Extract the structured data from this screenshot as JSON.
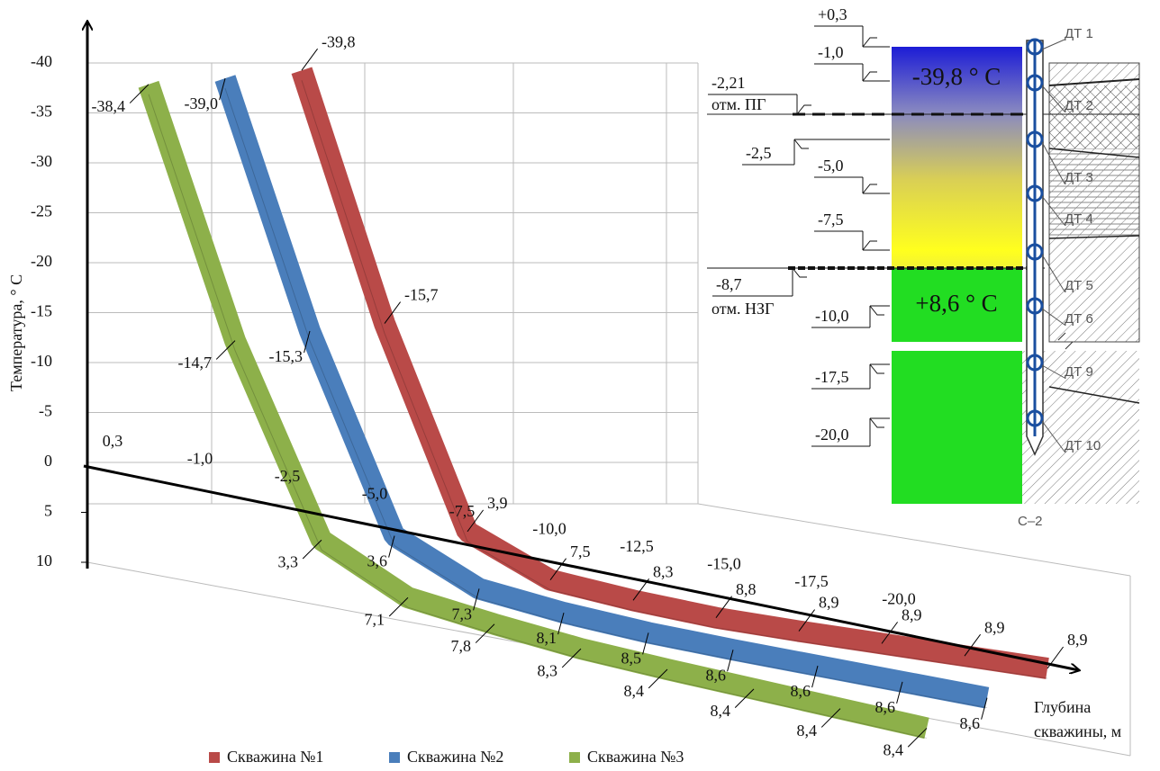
{
  "chart_data": {
    "type": "line",
    "y_label": "Температура, ° С",
    "x_label": [
      "Глубина",
      "скважины, м"
    ],
    "categories": [
      "0,3",
      "-1,0",
      "-2,5",
      "-5,0",
      "-7,5",
      "-10,0",
      "-12,5",
      "-15,0",
      "-17,5",
      "-20,0"
    ],
    "ylim": [
      -40,
      10
    ],
    "y_reversed": true,
    "yticks": [
      -40,
      -35,
      -30,
      -25,
      -20,
      -15,
      -10,
      -5,
      0,
      5,
      10
    ],
    "grid": true,
    "series": [
      {
        "name": "Скважина №1",
        "color": "#b94a48",
        "values": [
          -39.8,
          -15.7,
          3.9,
          7.5,
          8.3,
          8.8,
          8.9,
          8.9,
          8.9,
          8.9
        ],
        "value_labels": [
          "-39,8",
          "-15,7",
          "3,9",
          "7,5",
          "8,3",
          "8,8",
          "8,9",
          "8,9",
          "8,9",
          "8,9"
        ]
      },
      {
        "name": "Скважина №2",
        "color": "#4a7ebb",
        "values": [
          -39.0,
          -15.3,
          3.6,
          7.3,
          8.1,
          8.5,
          8.6,
          8.6,
          8.6,
          8.6
        ],
        "value_labels": [
          "-39,0",
          "-15,3",
          "3,6",
          "7,3",
          "8,1",
          "8,5",
          "8,6",
          "8,6",
          "8,6",
          "8,6"
        ]
      },
      {
        "name": "Скважина №3",
        "color": "#8db04a",
        "values": [
          -38.4,
          -14.7,
          3.3,
          7.1,
          7.8,
          8.3,
          8.4,
          8.4,
          8.4,
          8.4
        ],
        "value_labels": [
          "-38,4",
          "-14,7",
          "3,3",
          "7,1",
          "7,8",
          "8,3",
          "8,4",
          "8,4",
          "8,4",
          "8,4"
        ]
      }
    ]
  },
  "diagram": {
    "elevations": [
      "+0,3",
      "-1,0",
      "-2,21",
      "-2,5",
      "-5,0",
      "-7,5",
      "-8,7",
      "-10,0",
      "-17,5",
      "-20,0"
    ],
    "marks": [
      "отм. ПГ",
      "отм. НЗГ"
    ],
    "temperatures": [
      "-39,8 ° С",
      "+8,6 ° С"
    ],
    "sensors": [
      "ДТ 1",
      "ДТ 2",
      "ДТ 3",
      "ДТ 4",
      "ДТ 5",
      "ДТ 6",
      "ДТ 9",
      "ДТ 10"
    ],
    "well": "С–2"
  }
}
